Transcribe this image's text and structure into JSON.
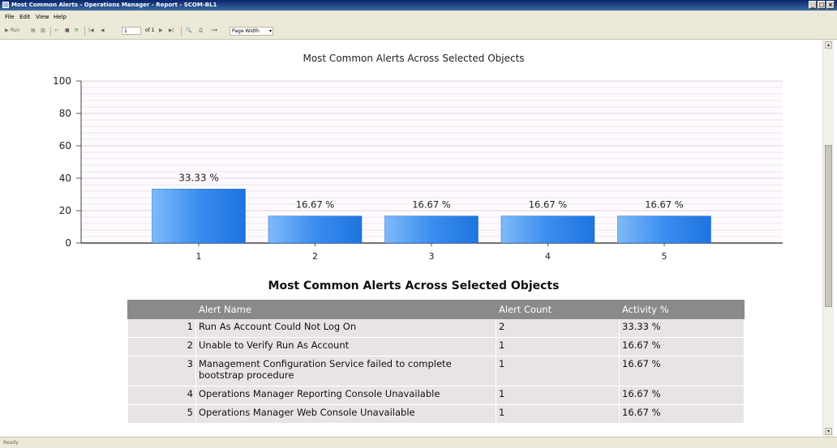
{
  "window": {
    "title": "Most Common Alerts - Operations Manager - Report - SCOM-BL1"
  },
  "menu": [
    "File",
    "Edit",
    "View",
    "Help"
  ],
  "toolbar": {
    "run_label": "Run",
    "page_current": "1",
    "page_of": "of 1",
    "zoom_value": "Page Width"
  },
  "status": {
    "text": "Ready"
  },
  "chart_data": {
    "type": "bar",
    "title": "Most Common Alerts Across Selected Objects",
    "categories": [
      "1",
      "2",
      "3",
      "4",
      "5"
    ],
    "values": [
      33.33,
      16.67,
      16.67,
      16.67,
      16.67
    ],
    "data_labels": [
      "33.33 %",
      "16.67 %",
      "16.67 %",
      "16.67 %",
      "16.67 %"
    ],
    "yticks": [
      0,
      20,
      40,
      60,
      80,
      100
    ],
    "ylim": [
      0,
      100
    ],
    "grid": true,
    "color": "#3a8df0"
  },
  "table": {
    "title": "Most Common Alerts Across Selected Objects",
    "headers": [
      "",
      "Alert Name",
      "Alert Count",
      "Activity %"
    ],
    "rows": [
      {
        "index": "1",
        "name": "Run As Account Could Not Log On",
        "count": "2",
        "activity": "33.33 %"
      },
      {
        "index": "2",
        "name": "Unable to Verify Run As Account",
        "count": "1",
        "activity": "16.67 %"
      },
      {
        "index": "3",
        "name": "Management Configuration Service failed to complete bootstrap procedure",
        "count": "1",
        "activity": "16.67 %"
      },
      {
        "index": "4",
        "name": "Operations Manager Reporting Console Unavailable",
        "count": "1",
        "activity": "16.67 %"
      },
      {
        "index": "5",
        "name": "Operations Manager Web Console Unavailable",
        "count": "1",
        "activity": "16.67 %"
      }
    ]
  }
}
